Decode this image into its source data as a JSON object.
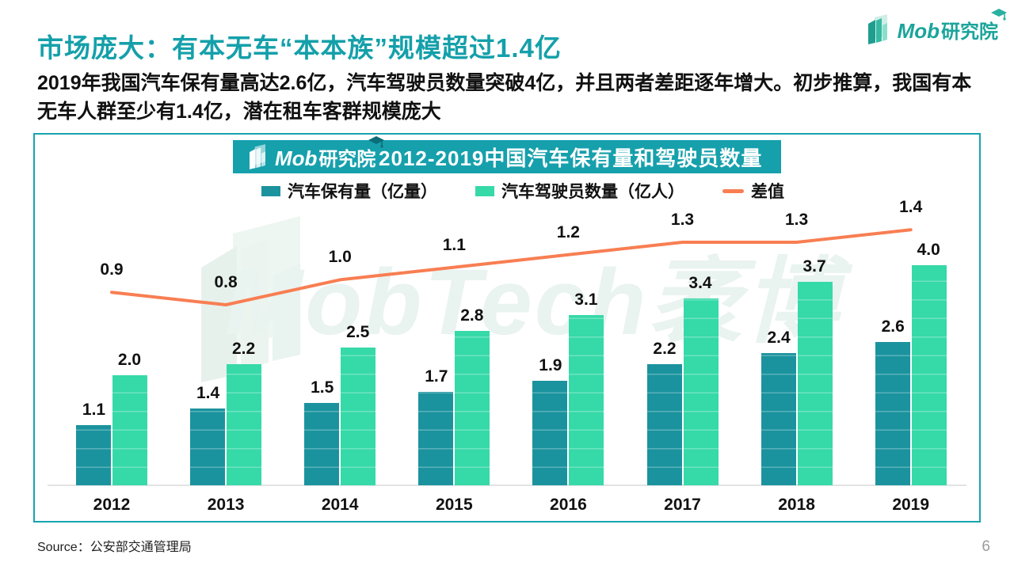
{
  "page": {
    "title": "市场庞大：有本无车“本本族”规模超过1.4亿",
    "subtitle": "2019年我国汽车保有量高达2.6亿，汽车驾驶员数量突破4亿，并且两者差距逐年增大。初步推算，我国有本无车人群至少有1.4亿，潜在租车客群规模庞大",
    "source": "Source：公安部交通管理局",
    "page_number": "6"
  },
  "brand": {
    "name_latin": "Mob",
    "name_cjk": "研究院",
    "color": "#1aa49b",
    "watermark_latin": "MobTech",
    "watermark_cjk": "袤博"
  },
  "chart_data": {
    "type": "bar",
    "combo": "grouped bars with line series on secondary scale",
    "title": "2012-2019中国汽车保有量和驾驶员数量",
    "categories": [
      "2012",
      "2013",
      "2014",
      "2015",
      "2016",
      "2017",
      "2018",
      "2019"
    ],
    "series": [
      {
        "id": "car-ownership",
        "name": "汽车保有量（亿量）",
        "kind": "bar",
        "color": "#1b939e",
        "values": [
          1.1,
          1.4,
          1.5,
          1.7,
          1.9,
          2.2,
          2.4,
          2.6
        ]
      },
      {
        "id": "car-drivers",
        "name": "汽车驾驶员数量（亿人）",
        "kind": "bar",
        "color": "#36d9a8",
        "values": [
          2.0,
          2.2,
          2.5,
          2.8,
          3.1,
          3.4,
          3.7,
          4.0
        ]
      },
      {
        "id": "gap",
        "name": "差值",
        "kind": "line",
        "color": "#f87e52",
        "values": [
          0.9,
          0.8,
          1.0,
          1.1,
          1.2,
          1.3,
          1.3,
          1.4
        ]
      }
    ],
    "legend_position": "top",
    "grid": false,
    "data_labels": true,
    "y_axis_visible": false,
    "banner_bg": "#16a0ac",
    "border_color": "#17a3b0"
  }
}
